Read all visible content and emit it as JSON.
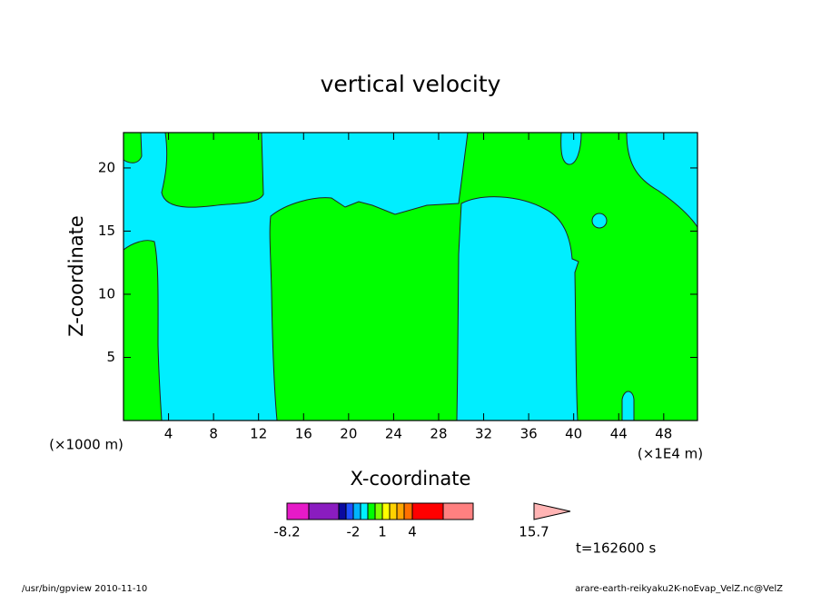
{
  "chart_data": {
    "type": "contour",
    "title": "vertical velocity",
    "x_label": "X-coordinate",
    "y_label": "Z-coordinate",
    "x_unit_left": "(×1000 m)",
    "x_unit_right": "(×1E4 m)",
    "xlim": [
      0,
      51
    ],
    "ylim": [
      0,
      22.8
    ],
    "xticks": [
      4,
      8,
      12,
      16,
      20,
      24,
      28,
      32,
      36,
      40,
      44,
      48
    ],
    "yticks": [
      5,
      10,
      15,
      20
    ],
    "colorbar": {
      "colors": [
        "#e61ac8",
        "#8a1cc0",
        "#0a0aa0",
        "#1e50ff",
        "#00b4ff",
        "#00f0ff",
        "#00ff00",
        "#80ff00",
        "#ffff00",
        "#ffd200",
        "#ffa500",
        "#ff7000",
        "#ff0000",
        "#ff8080"
      ],
      "extend_color": "#ffb4b4",
      "ticks": [
        -8.2,
        -2,
        1,
        4,
        15.7
      ]
    },
    "time_label": "t=162600 s"
  },
  "footer_left": "/usr/bin/gpview  2010-11-10",
  "footer_right": "arare-earth-reikyaku2K-noEvap_VelZ.nc@VelZ"
}
